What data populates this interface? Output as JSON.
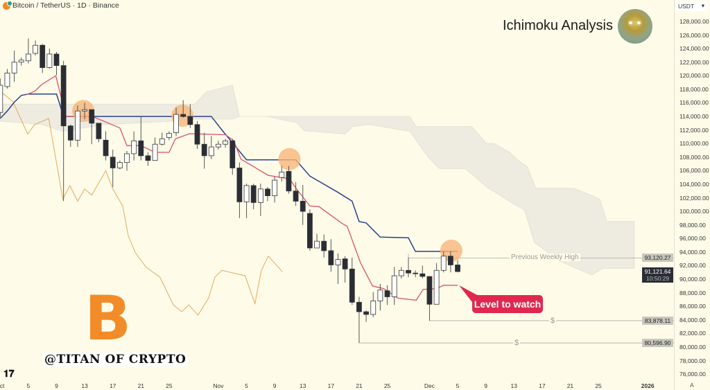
{
  "header": {
    "symbol_title": "Bitcoin / TetherUS · 1D · Binance",
    "icon": "bitcoin-coin-icon"
  },
  "overlay": {
    "analysis_title": "Ichimoku Analysis",
    "watermark": "@TITAN OF CRYPTO",
    "logo_letter": "B",
    "callout": "Level to watch",
    "previous_weekly_high": "Previous Weekly High",
    "dollar_marker": "$",
    "tv_logo": "TV"
  },
  "currency_select": {
    "value": "USDT"
  },
  "colors": {
    "background": "#fefce9",
    "kijun": "#2b3f8f",
    "tenkan": "#d9506a",
    "chikou": "#e8a55a",
    "cloud": "#eeece0",
    "highlight": "#f7b57a",
    "callout": "#e0284f",
    "bull": "#ffffff",
    "bear": "#2b2d36"
  },
  "price_axis": {
    "ticks": [
      "128,000.00",
      "126,000.00",
      "124,000.00",
      "122,000.00",
      "120,000.00",
      "118,000.00",
      "116,000.00",
      "114,000.00",
      "112,000.00",
      "110,000.00",
      "108,000.00",
      "106,000.00",
      "104,000.00",
      "102,000.00",
      "100,000.00",
      "98,000.00",
      "96,000.00",
      "94,000.00",
      "92,000.00",
      "90,000.00",
      "88,000.00",
      "86,000.00",
      "84,000.00",
      "82,000.00",
      "80,000.00",
      "78,000.00",
      "76,000.00"
    ],
    "tick_values": [
      128000,
      126000,
      124000,
      122000,
      120000,
      118000,
      116000,
      114000,
      112000,
      110000,
      108000,
      106000,
      104000,
      102000,
      100000,
      98000,
      96000,
      94000,
      92000,
      90000,
      88000,
      86000,
      84000,
      82000,
      80000,
      78000,
      76000
    ],
    "levels": [
      {
        "label": "93,120.27",
        "value": 93120.27,
        "style": "gray"
      },
      {
        "label": "83,878.11",
        "value": 83878.11,
        "style": "gray"
      },
      {
        "label": "80,596.90",
        "value": 80596.9,
        "style": "gray"
      }
    ],
    "current": {
      "label": "91,121.64",
      "value": 91121.64,
      "countdown": "10:50:29"
    },
    "auto_label": "A"
  },
  "time_axis": {
    "labels": [
      "ct",
      "5",
      "9",
      "13",
      "17",
      "21",
      "25",
      "Nov",
      "5",
      "9",
      "13",
      "17",
      "21",
      "25",
      "Dec",
      "5",
      "9",
      "13",
      "17",
      "21",
      "25",
      "2026"
    ],
    "label_days": [
      0,
      4,
      8,
      12,
      16,
      20,
      24,
      31,
      35,
      39,
      43,
      47,
      51,
      55,
      61,
      65,
      69,
      73,
      77,
      81,
      85,
      92
    ]
  },
  "chart_data": {
    "type": "candlestick",
    "ylim": [
      75000,
      129000
    ],
    "first_day": "Oct 1",
    "candles_ohlc": [
      [
        114600,
        119600,
        113900,
        118600
      ],
      [
        118400,
        121000,
        118100,
        120400
      ],
      [
        120400,
        123700,
        119100,
        122000
      ],
      [
        122000,
        122700,
        121500,
        122300
      ],
      [
        122200,
        125500,
        121800,
        123200
      ],
      [
        123300,
        125200,
        123000,
        124500
      ],
      [
        124500,
        124700,
        120400,
        121200
      ],
      [
        121200,
        124000,
        121000,
        123200
      ],
      [
        123200,
        123500,
        120100,
        121500
      ],
      [
        121500,
        122200,
        101500,
        112600
      ],
      [
        112600,
        112800,
        109500,
        110500
      ],
      [
        110500,
        115600,
        109500,
        114800
      ],
      [
        114800,
        116000,
        113600,
        115000
      ],
      [
        115000,
        115000,
        109900,
        113000
      ],
      [
        113000,
        113000,
        110200,
        110700
      ],
      [
        110500,
        111800,
        107500,
        108200
      ],
      [
        108000,
        109100,
        103600,
        106400
      ],
      [
        106400,
        107500,
        106200,
        107200
      ],
      [
        107200,
        108900,
        106000,
        108500
      ],
      [
        108500,
        111800,
        107500,
        110400
      ],
      [
        110400,
        114000,
        107500,
        108200
      ],
      [
        108200,
        108700,
        106700,
        107500
      ],
      [
        107500,
        110900,
        107500,
        109900
      ],
      [
        109900,
        111600,
        109700,
        110700
      ],
      [
        110900,
        111800,
        110500,
        111500
      ],
      [
        111600,
        115300,
        111100,
        114300
      ],
      [
        114300,
        116400,
        113800,
        114000
      ],
      [
        114000,
        115800,
        112300,
        112800
      ],
      [
        112800,
        113300,
        109200,
        109900
      ],
      [
        109900,
        111600,
        106300,
        108200
      ],
      [
        108200,
        111100,
        107700,
        109500
      ],
      [
        109500,
        110400,
        109100,
        109900
      ],
      [
        109900,
        110700,
        109400,
        110400
      ],
      [
        110400,
        110700,
        105400,
        106400
      ],
      [
        106400,
        107200,
        99000,
        101400
      ],
      [
        101400,
        104100,
        99000,
        103800
      ],
      [
        103800,
        104100,
        100300,
        101300
      ],
      [
        101300,
        104100,
        99300,
        103300
      ],
      [
        103300,
        103600,
        101500,
        102300
      ],
      [
        102300,
        105100,
        101300,
        104600
      ],
      [
        105000,
        106700,
        104400,
        105800
      ],
      [
        105900,
        106700,
        102600,
        103000
      ],
      [
        103000,
        104300,
        100800,
        101500
      ],
      [
        101500,
        103900,
        98000,
        100000
      ],
      [
        99700,
        100300,
        94200,
        94600
      ],
      [
        94600,
        96700,
        94600,
        95600
      ],
      [
        95600,
        96600,
        93200,
        94200
      ],
      [
        94200,
        95900,
        91100,
        92100
      ],
      [
        92100,
        93800,
        89300,
        92900
      ],
      [
        93000,
        93400,
        89500,
        91500
      ],
      [
        91500,
        93200,
        86200,
        86600
      ],
      [
        86600,
        87400,
        80596.9,
        85200
      ],
      [
        85200,
        85400,
        83700,
        84800
      ],
      [
        84800,
        88100,
        84400,
        86800
      ],
      [
        86800,
        89300,
        85400,
        88400
      ],
      [
        88300,
        89100,
        86200,
        87400
      ],
      [
        87400,
        91800,
        86200,
        90500
      ],
      [
        90500,
        91800,
        90100,
        91300
      ],
      [
        91300,
        93200,
        90300,
        90900
      ],
      [
        90900,
        91300,
        90300,
        90800
      ],
      [
        90800,
        92000,
        90100,
        90400
      ],
      [
        90400,
        90400,
        83878.11,
        86300
      ],
      [
        86300,
        92400,
        86300,
        91300
      ],
      [
        91300,
        94100,
        91000,
        93400
      ],
      [
        93400,
        94100,
        91000,
        92100
      ],
      [
        92100,
        92800,
        91000,
        91121.64
      ]
    ],
    "kijun": [
      [
        0,
        113700
      ],
      [
        1,
        114800
      ],
      [
        2,
        116100
      ],
      [
        3,
        117100
      ],
      [
        4,
        117300
      ],
      [
        8,
        117300
      ],
      [
        9,
        114000
      ],
      [
        30,
        114000
      ],
      [
        31.5,
        112000
      ],
      [
        35,
        107600
      ],
      [
        42,
        107600
      ],
      [
        44,
        105200
      ],
      [
        48,
        102800
      ],
      [
        50,
        101500
      ],
      [
        51,
        98500
      ],
      [
        52,
        98300
      ],
      [
        54,
        96200
      ],
      [
        58,
        96100
      ],
      [
        59,
        94100
      ],
      [
        65,
        94100
      ]
    ],
    "tenkan": [
      [
        3.7,
        117200
      ],
      [
        4.9,
        117700
      ],
      [
        5.9,
        118700
      ],
      [
        7.9,
        120000
      ],
      [
        8.9,
        115800
      ],
      [
        9.1,
        114000
      ],
      [
        13.1,
        114000
      ],
      [
        17,
        112300
      ],
      [
        18,
        109700
      ],
      [
        20,
        109700
      ],
      [
        22,
        108700
      ],
      [
        24,
        108700
      ],
      [
        24.9,
        110700
      ],
      [
        26.9,
        111450
      ],
      [
        32,
        111300
      ],
      [
        33.2,
        110400
      ],
      [
        34.2,
        107700
      ],
      [
        38.1,
        105300
      ],
      [
        41.1,
        104800
      ],
      [
        42.1,
        103300
      ],
      [
        44,
        100800
      ],
      [
        45.3,
        100700
      ],
      [
        48.6,
        98200
      ],
      [
        49.3,
        97800
      ],
      [
        51.2,
        92400
      ],
      [
        52.9,
        89000
      ],
      [
        54.5,
        88600
      ],
      [
        56.5,
        87200
      ],
      [
        59.1,
        86900
      ],
      [
        60.1,
        88500
      ],
      [
        62,
        88600
      ],
      [
        63,
        89100
      ],
      [
        65,
        89100
      ]
    ],
    "chikou": [
      [
        0,
        117700
      ],
      [
        1.8,
        116200
      ],
      [
        3.9,
        111400
      ],
      [
        4.9,
        112800
      ],
      [
        6.9,
        113700
      ],
      [
        8.9,
        101800
      ],
      [
        9.9,
        103800
      ],
      [
        11,
        101500
      ],
      [
        12,
        103300
      ],
      [
        13,
        102400
      ],
      [
        15,
        106000
      ],
      [
        16,
        103300
      ],
      [
        17.4,
        100800
      ],
      [
        18.2,
        96400
      ],
      [
        19.2,
        93900
      ],
      [
        20.7,
        91800
      ],
      [
        22.7,
        90300
      ],
      [
        24.6,
        86200
      ],
      [
        25.8,
        85200
      ],
      [
        26.8,
        86200
      ],
      [
        28.1,
        84700
      ],
      [
        29.6,
        87200
      ],
      [
        30.5,
        90300
      ],
      [
        31.5,
        91300
      ],
      [
        34.8,
        90500
      ],
      [
        36.2,
        86400
      ],
      [
        37.1,
        91300
      ],
      [
        38.1,
        93400
      ],
      [
        40.1,
        91100
      ]
    ],
    "cloud_upper": [
      [
        0,
        115800
      ],
      [
        27.6,
        115800
      ],
      [
        29.3,
        117600
      ],
      [
        33,
        118600
      ],
      [
        34,
        114000
      ],
      [
        58.2,
        114000
      ],
      [
        59.1,
        112500
      ],
      [
        67,
        112500
      ],
      [
        69.1,
        110000
      ],
      [
        70.2,
        110000
      ],
      [
        72.4,
        108700
      ],
      [
        73.6,
        107500
      ],
      [
        74.9,
        106600
      ],
      [
        76.1,
        103400
      ],
      [
        81.5,
        103400
      ],
      [
        83.9,
        102400
      ],
      [
        85.2,
        101800
      ],
      [
        86.2,
        98500
      ],
      [
        90.1,
        98500
      ]
    ],
    "cloud_lower": [
      [
        0,
        113300
      ],
      [
        5.9,
        112800
      ],
      [
        8.9,
        111800
      ],
      [
        14.8,
        112800
      ],
      [
        24.6,
        113300
      ],
      [
        27.6,
        113600
      ],
      [
        33,
        113600
      ],
      [
        34,
        114000
      ],
      [
        37.9,
        114000
      ],
      [
        42.1,
        113100
      ],
      [
        43.2,
        111900
      ],
      [
        49,
        111400
      ],
      [
        50.1,
        112500
      ],
      [
        52.4,
        112800
      ],
      [
        58.2,
        111800
      ],
      [
        60.8,
        108000
      ],
      [
        62.4,
        106300
      ],
      [
        66.1,
        106300
      ],
      [
        69.1,
        103600
      ],
      [
        72.8,
        101200
      ],
      [
        74.5,
        100200
      ],
      [
        75.9,
        95400
      ],
      [
        79.4,
        92700
      ],
      [
        84.1,
        90600
      ],
      [
        85.6,
        91600
      ],
      [
        90.1,
        91600
      ]
    ],
    "highlights": [
      [
        11.8,
        114800
      ],
      [
        25.9,
        114100
      ],
      [
        41.1,
        107700
      ],
      [
        64.1,
        94200
      ]
    ],
    "horizontal_lines": [
      {
        "from_day": 58,
        "value": 93120.27
      },
      {
        "from_day": 61,
        "value": 83878.11
      },
      {
        "from_day": 51,
        "value": 80596.9
      }
    ],
    "callout_anchor": [
      65.2,
      89100
    ]
  }
}
